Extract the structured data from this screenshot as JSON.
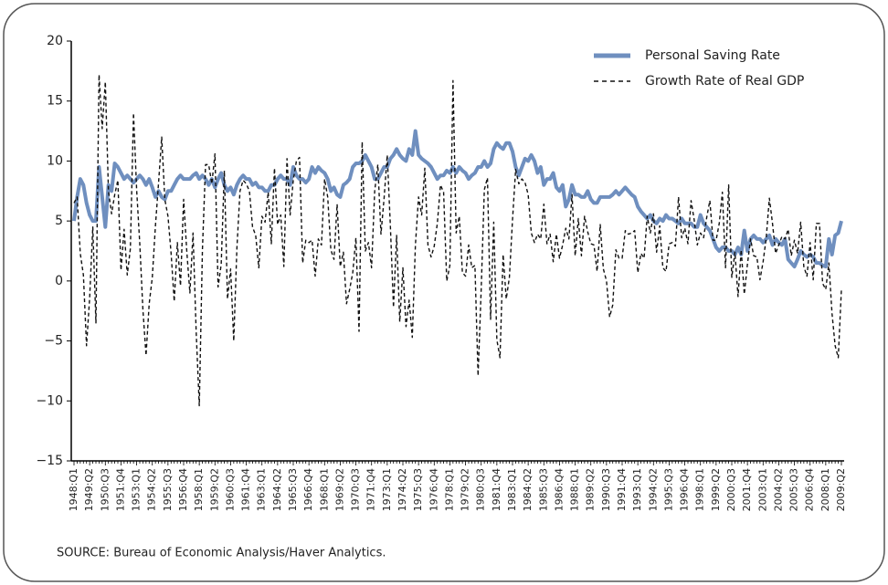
{
  "chart_data": {
    "type": "line",
    "categories": [
      "1948:Q1",
      null,
      null,
      null,
      null,
      "1949:Q2",
      null,
      null,
      null,
      null,
      "1950:Q3",
      null,
      null,
      null,
      null,
      "1951:Q4",
      null,
      null,
      null,
      null,
      "1953:Q1",
      null,
      null,
      null,
      null,
      "1954:Q2",
      null,
      null,
      null,
      null,
      "1955:Q3",
      null,
      null,
      null,
      null,
      "1956:Q4",
      null,
      null,
      null,
      null,
      "1958:Q1",
      null,
      null,
      null,
      null,
      "1959:Q2",
      null,
      null,
      null,
      null,
      "1960:Q3",
      null,
      null,
      null,
      null,
      "1961:Q4",
      null,
      null,
      null,
      null,
      "1963:Q1",
      null,
      null,
      null,
      null,
      "1964:Q2",
      null,
      null,
      null,
      null,
      "1965:Q3",
      null,
      null,
      null,
      null,
      "1966:Q4",
      null,
      null,
      null,
      null,
      "1968:Q1",
      null,
      null,
      null,
      null,
      "1969:Q2",
      null,
      null,
      null,
      null,
      "1970:Q3",
      null,
      null,
      null,
      null,
      "1971:Q4",
      null,
      null,
      null,
      null,
      "1973:Q1",
      null,
      null,
      null,
      null,
      "1974:Q2",
      null,
      null,
      null,
      null,
      "1975:Q3",
      null,
      null,
      null,
      null,
      "1976:Q4",
      null,
      null,
      null,
      null,
      "1978:Q1",
      null,
      null,
      null,
      null,
      "1979:Q2",
      null,
      null,
      null,
      null,
      "1980:Q3",
      null,
      null,
      null,
      null,
      "1981:Q4",
      null,
      null,
      null,
      null,
      "1983:Q1",
      null,
      null,
      null,
      null,
      "1984:Q2",
      null,
      null,
      null,
      null,
      "1985:Q3",
      null,
      null,
      null,
      null,
      "1986:Q4",
      null,
      null,
      null,
      null,
      "1988:Q1",
      null,
      null,
      null,
      null,
      "1989:Q2",
      null,
      null,
      null,
      null,
      "1990:Q3",
      null,
      null,
      null,
      null,
      "1991:Q4",
      null,
      null,
      null,
      null,
      "1993:Q1",
      null,
      null,
      null,
      null,
      "1994:Q2",
      null,
      null,
      null,
      null,
      "1995:Q3",
      null,
      null,
      null,
      null,
      "1996:Q4",
      null,
      null,
      null,
      null,
      "1998:Q1",
      null,
      null,
      null,
      null,
      "1999:Q2",
      null,
      null,
      null,
      null,
      "2000:Q3",
      null,
      null,
      null,
      null,
      "2001:Q4",
      null,
      null,
      null,
      null,
      "2003:Q1",
      null,
      null,
      null,
      null,
      "2004:Q2",
      null,
      null,
      null,
      null,
      "2005:Q3",
      null,
      null,
      null,
      null,
      "2006:Q4",
      null,
      null,
      null,
      null,
      "2008:Q1",
      null,
      null,
      null,
      null,
      "2009:Q2"
    ],
    "series": [
      {
        "name": "Personal Saving Rate",
        "color": "#6f8fbf",
        "line_style": "solid",
        "values": [
          5.0,
          7.0,
          8.5,
          8.0,
          6.5,
          5.5,
          5.0,
          5.0,
          9.5,
          7.0,
          4.5,
          8.0,
          7.5,
          9.8,
          9.5,
          9.0,
          8.5,
          8.8,
          8.5,
          8.2,
          8.5,
          8.8,
          8.5,
          8.0,
          8.5,
          7.8,
          7.0,
          7.5,
          7.0,
          6.8,
          7.5,
          7.5,
          8.0,
          8.5,
          8.8,
          8.5,
          8.5,
          8.5,
          8.8,
          9.0,
          8.5,
          8.8,
          8.5,
          8.0,
          8.5,
          7.8,
          8.5,
          9.0,
          8.0,
          7.5,
          7.8,
          7.2,
          8.0,
          8.5,
          8.8,
          8.5,
          8.5,
          8.0,
          8.2,
          7.8,
          7.8,
          7.5,
          7.5,
          8.0,
          8.0,
          8.5,
          8.8,
          8.5,
          8.5,
          8.0,
          9.5,
          8.8,
          8.5,
          8.5,
          8.2,
          8.5,
          9.5,
          9.0,
          9.5,
          9.2,
          9.0,
          8.5,
          7.5,
          7.8,
          7.2,
          7.0,
          8.0,
          8.2,
          8.5,
          9.5,
          9.8,
          9.8,
          10.0,
          10.5,
          10.0,
          9.5,
          8.5,
          8.5,
          9.0,
          9.5,
          9.5,
          10.2,
          10.5,
          11.0,
          10.5,
          10.2,
          10.0,
          11.0,
          10.5,
          12.5,
          10.5,
          10.2,
          10.0,
          9.8,
          9.5,
          9.0,
          8.5,
          8.8,
          8.8,
          9.2,
          9.0,
          9.5,
          9.0,
          9.5,
          9.2,
          9.0,
          8.5,
          8.8,
          9.0,
          9.5,
          9.5,
          10.0,
          9.5,
          9.8,
          11.0,
          11.5,
          11.2,
          11.0,
          11.5,
          11.5,
          10.8,
          9.5,
          8.8,
          9.5,
          10.2,
          10.0,
          10.5,
          10.0,
          9.0,
          9.5,
          8.0,
          8.5,
          8.5,
          9.0,
          7.8,
          7.5,
          8.0,
          6.2,
          6.8,
          8.0,
          7.2,
          7.2,
          7.0,
          7.0,
          7.5,
          6.8,
          6.5,
          6.5,
          7.0,
          7.0,
          7.0,
          7.0,
          7.2,
          7.5,
          7.2,
          7.5,
          7.8,
          7.5,
          7.2,
          7.0,
          6.2,
          5.8,
          5.5,
          5.2,
          5.5,
          5.0,
          4.8,
          5.2,
          5.0,
          5.5,
          5.2,
          5.2,
          5.0,
          4.8,
          5.2,
          4.8,
          4.8,
          4.8,
          4.5,
          4.5,
          5.5,
          4.8,
          4.5,
          4.2,
          3.5,
          2.8,
          2.5,
          2.8,
          2.8,
          2.5,
          2.5,
          2.2,
          2.8,
          2.2,
          4.2,
          2.5,
          3.5,
          3.8,
          3.5,
          3.5,
          3.2,
          3.5,
          3.8,
          3.0,
          3.5,
          3.2,
          3.0,
          3.5,
          1.8,
          1.5,
          1.2,
          1.8,
          2.5,
          2.2,
          2.0,
          2.2,
          2.0,
          1.5,
          1.5,
          1.3,
          1.2,
          3.5,
          2.2,
          3.8,
          4.0,
          5.0
        ]
      },
      {
        "name": "Growth Rate of Real GDP",
        "color": "#111111",
        "line_style": "dashed",
        "values": [
          6.5,
          7.0,
          2.3,
          0.5,
          -5.4,
          -1.4,
          4.5,
          -3.5,
          17.2,
          12.7,
          16.6,
          7.5,
          5.6,
          7.2,
          8.4,
          0.9,
          4.3,
          0.5,
          2.7,
          14.0,
          7.6,
          3.1,
          -2.4,
          -6.2,
          -1.9,
          0.3,
          4.6,
          8.2,
          12.0,
          6.8,
          5.4,
          2.3,
          -1.7,
          3.2,
          -0.4,
          6.8,
          2.5,
          -1.0,
          4.0,
          -4.2,
          -10.4,
          2.6,
          9.7,
          9.7,
          8.1,
          10.6,
          -0.5,
          1.4,
          9.2,
          -1.5,
          1.0,
          -5.0,
          2.7,
          7.5,
          8.4,
          8.1,
          7.5,
          4.5,
          3.8,
          1.1,
          5.4,
          4.9,
          7.4,
          3.1,
          9.4,
          4.7,
          5.5,
          1.2,
          10.2,
          5.5,
          8.4,
          10.0,
          10.3,
          1.5,
          3.4,
          3.2,
          3.4,
          0.4,
          3.5,
          3.0,
          8.5,
          7.0,
          2.6,
          1.8,
          6.4,
          1.2,
          2.4,
          -1.9,
          -0.7,
          0.7,
          3.6,
          -4.2,
          11.6,
          2.5,
          3.2,
          1.1,
          7.5,
          9.7,
          3.9,
          6.9,
          10.5,
          4.6,
          -2.2,
          3.8,
          -3.4,
          1.1,
          -3.8,
          -1.6,
          -4.7,
          3.0,
          7.0,
          5.5,
          9.4,
          3.0,
          2.0,
          2.9,
          4.8,
          8.0,
          7.4,
          0.0,
          1.3,
          16.7,
          4.0,
          5.4,
          0.7,
          0.4,
          3.0,
          1.1,
          1.3,
          -7.9,
          -0.7,
          7.6,
          8.6,
          -3.2,
          4.9,
          -4.9,
          -6.4,
          2.2,
          -1.5,
          0.3,
          5.1,
          9.3,
          8.1,
          8.5,
          8.2,
          7.2,
          4.0,
          3.2,
          3.9,
          3.5,
          6.4,
          3.1,
          3.9,
          1.6,
          3.9,
          1.9,
          3.0,
          4.4,
          3.5,
          7.2,
          2.1,
          5.2,
          2.1,
          5.4,
          4.1,
          3.1,
          3.0,
          0.8,
          4.7,
          1.0,
          0.0,
          -3.0,
          -2.0,
          2.6,
          1.9,
          1.9,
          4.2,
          3.9,
          4.0,
          4.2,
          0.7,
          2.3,
          1.9,
          5.4,
          4.0,
          5.6,
          2.4,
          4.6,
          1.1,
          0.8,
          3.1,
          3.2,
          2.9,
          7.0,
          3.6,
          4.4,
          3.1,
          6.7,
          5.1,
          3.0,
          4.0,
          3.6,
          5.3,
          6.7,
          3.4,
          3.4,
          4.8,
          7.4,
          1.1,
          8.0,
          0.3,
          2.4,
          -1.3,
          2.6,
          -1.1,
          1.4,
          3.5,
          2.1,
          2.0,
          0.1,
          1.6,
          3.6,
          6.9,
          4.8,
          2.3,
          3.0,
          3.7,
          3.5,
          4.3,
          2.1,
          3.4,
          2.3,
          4.9,
          1.2,
          0.4,
          3.2,
          0.1,
          4.8,
          4.8,
          -0.2,
          -0.7,
          1.5,
          -2.7,
          -5.4,
          -6.4,
          -0.7
        ]
      }
    ],
    "ylim": [
      -15,
      20
    ],
    "yticks": [
      {
        "value": -15,
        "label": "−15"
      },
      {
        "value": -10,
        "label": "−10"
      },
      {
        "value": -5,
        "label": "−5"
      },
      0,
      5,
      10,
      15,
      20
    ],
    "grid": false,
    "legend_position": "top-right",
    "source": "SOURCE: Bureau of Economic Analysis/Haver Analytics."
  }
}
